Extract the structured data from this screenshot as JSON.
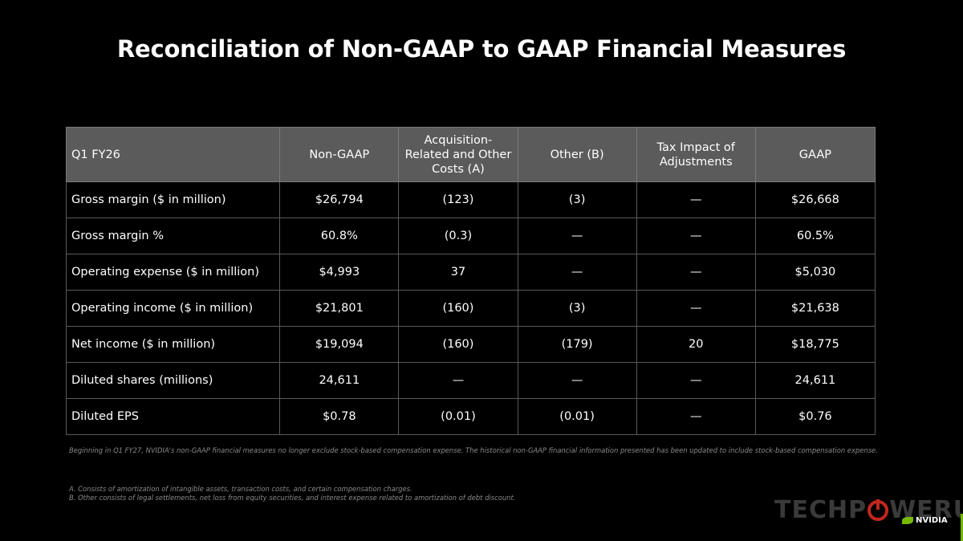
{
  "title": "Reconciliation of Non-GAAP to GAAP Financial Measures",
  "table": {
    "headers": [
      "Q1 FY26",
      "Non-GAAP",
      "Acquisition-Related and Other Costs  (A)",
      "Other (B)",
      "Tax Impact of Adjustments",
      "GAAP"
    ],
    "rows": [
      [
        "Gross margin ($ in million)",
        "$26,794",
        "(123)",
        "(3)",
        "—",
        "$26,668"
      ],
      [
        "Gross margin %",
        "60.8%",
        "(0.3)",
        "—",
        "—",
        "60.5%"
      ],
      [
        "Operating expense ($ in million)",
        "$4,993",
        "37",
        "—",
        "—",
        "$5,030"
      ],
      [
        "Operating income ($ in million)",
        "$21,801",
        "(160)",
        "(3)",
        "—",
        "$21,638"
      ],
      [
        "Net income ($ in million)",
        "$19,094",
        "(160)",
        "(179)",
        "20",
        "$18,775"
      ],
      [
        "Diluted shares (millions)",
        "24,611",
        "—",
        "—",
        "—",
        "24,611"
      ],
      [
        "Diluted EPS",
        "$0.78",
        "(0.01)",
        "(0.01)",
        "—",
        "$0.76"
      ]
    ]
  },
  "note": "Beginning in Q1 FY27, NVIDIA's non-GAAP financial measures no longer exclude stock-based compensation expense. The historical non-GAAP financial information presented has been updated to include stock-based compensation expense.",
  "footnotes": [
    "A.  Consists of amortization of intangible assets, transaction costs, and certain compensation charges.",
    "B.  Other consists of legal settlements, net loss from equity securities, and interest expense related to amortization of debt discount."
  ],
  "watermark": {
    "left": "TECHP",
    "right": "WERUP"
  },
  "brand": {
    "name": "NVIDIA",
    "accent_color": "#76b900"
  }
}
